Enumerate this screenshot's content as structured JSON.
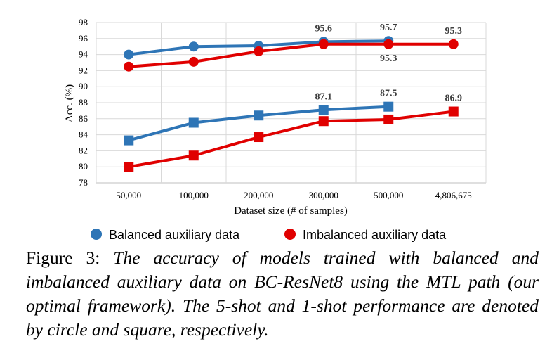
{
  "chart_data": {
    "type": "line",
    "categories": [
      "50,000",
      "100,000",
      "200,000",
      "300,000",
      "500,000",
      "4,806,675"
    ],
    "xlabel": "Dataset size (# of samples)",
    "ylabel": "Acc. (%)",
    "ylim": [
      78,
      98
    ],
    "yticks": [
      78,
      80,
      82,
      84,
      86,
      88,
      90,
      92,
      94,
      96,
      98
    ],
    "grid": true,
    "legend_position": "bottom",
    "legend": [
      "Balanced auxiliary data",
      "Imbalanced auxiliary data"
    ],
    "series": [
      {
        "legend_group": "Balanced auxiliary data",
        "marker": "circle",
        "color": "#2E75B6",
        "values": [
          94.0,
          95.0,
          95.1,
          95.6,
          95.7,
          null
        ]
      },
      {
        "legend_group": "Imbalanced auxiliary data",
        "marker": "circle",
        "color": "#E00000",
        "values": [
          92.5,
          93.1,
          94.4,
          95.3,
          95.3,
          95.3
        ]
      },
      {
        "legend_group": "Balanced auxiliary data",
        "marker": "square",
        "color": "#2E75B6",
        "values": [
          83.3,
          85.5,
          86.4,
          87.1,
          87.5,
          null
        ]
      },
      {
        "legend_group": "Imbalanced auxiliary data",
        "marker": "square",
        "color": "#E00000",
        "values": [
          80.0,
          81.4,
          83.7,
          85.7,
          85.9,
          86.9
        ]
      }
    ],
    "data_labels": [
      {
        "text": "95.6",
        "category": 3,
        "value": 95.6,
        "place": "above"
      },
      {
        "text": "95.7",
        "category": 4,
        "value": 95.7,
        "place": "above"
      },
      {
        "text": "95.3",
        "category": 5,
        "value": 95.3,
        "place": "above"
      },
      {
        "text": "95.3",
        "category": 4,
        "value": 95.3,
        "place": "below"
      },
      {
        "text": "87.1",
        "category": 3,
        "value": 87.1,
        "place": "above"
      },
      {
        "text": "87.5",
        "category": 4,
        "value": 87.5,
        "place": "above"
      },
      {
        "text": "86.9",
        "category": 5,
        "value": 86.9,
        "place": "above"
      }
    ]
  },
  "caption": {
    "label": "Figure 3: ",
    "text": "The accuracy of models trained with balanced and imbalanced auxiliary data on BC-ResNet8 using the MTL path (our optimal framework). The 5-shot and 1-shot performance are denoted by circle and square, respectively."
  }
}
